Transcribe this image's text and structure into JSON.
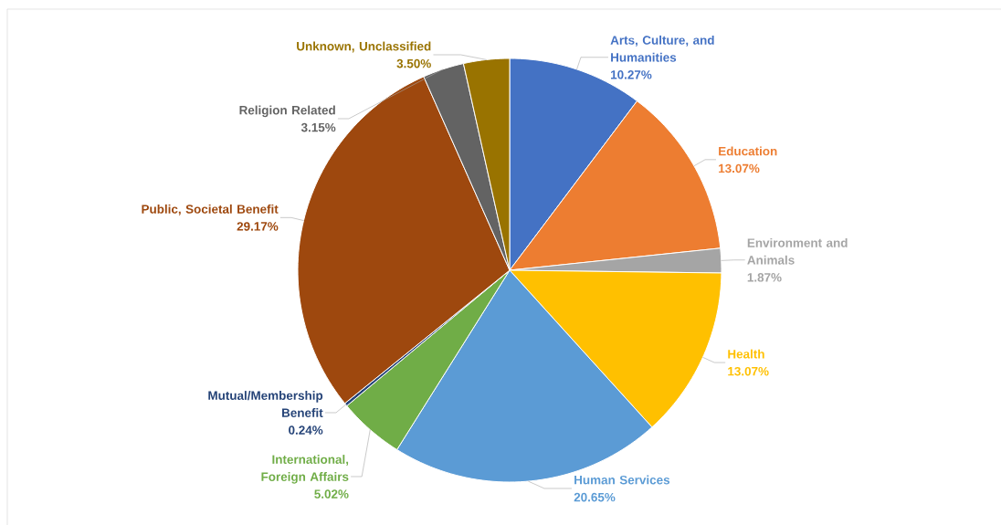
{
  "chart_data": {
    "type": "pie",
    "categories": [
      "Arts, Culture, and Humanities",
      "Education",
      "Environment and Animals",
      "Health",
      "Human Services",
      "International, Foreign Affairs",
      "Mutual/Membership Benefit",
      "Public, Societal Benefit",
      "Religion Related",
      "Unknown, Unclassified"
    ],
    "values": [
      10.27,
      13.07,
      1.87,
      13.07,
      20.65,
      5.02,
      0.24,
      29.17,
      3.15,
      3.5
    ],
    "value_labels": [
      "10.27%",
      "13.07%",
      "1.87%",
      "13.07%",
      "20.65%",
      "5.02%",
      "0.24%",
      "29.17%",
      "3.15%",
      "3.50%"
    ],
    "colors": [
      "#4472c4",
      "#ed7d31",
      "#a5a5a5",
      "#ffc000",
      "#5b9bd5",
      "#70ad47",
      "#264478",
      "#9e480e",
      "#636363",
      "#997300"
    ]
  }
}
